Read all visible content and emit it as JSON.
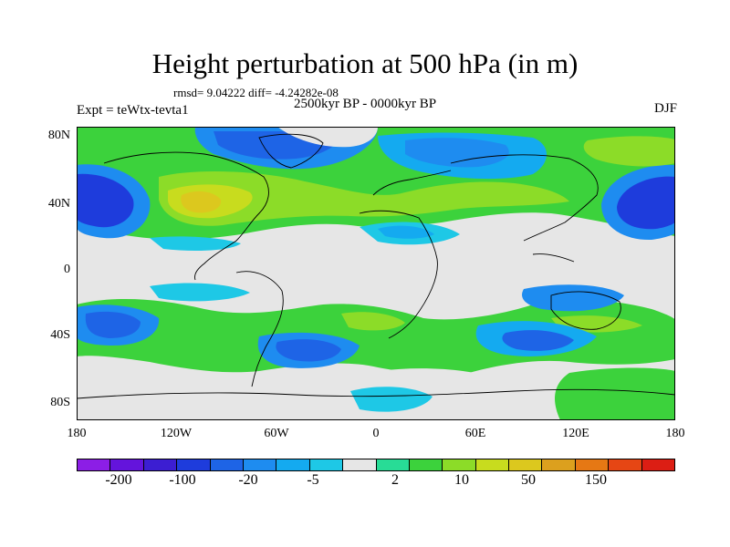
{
  "title": "Height perturbation at 500 hPa (in m)",
  "stats_line": "rmsd= 9.04222 diff= -4.24282e-08",
  "period": "2500kyr BP - 0000kyr BP",
  "experiment": "Expt = teWtx-tevta1",
  "season": "DJF",
  "lat_labels": [
    "80N",
    "40N",
    "0",
    "40S",
    "80S"
  ],
  "lon_labels": [
    "180",
    "120W",
    "60W",
    "0",
    "60E",
    "120E",
    "180"
  ],
  "colorbar": {
    "colors": [
      "#8c1ee6",
      "#6414dc",
      "#3c1ed2",
      "#1e3cdc",
      "#1e64e6",
      "#1e8cf0",
      "#14aaf0",
      "#1ec8e6",
      "#e6e6e6",
      "#28dc96",
      "#3cd23c",
      "#8cdc28",
      "#c8dc1e",
      "#dcc81e",
      "#dca01e",
      "#e67814",
      "#e64614",
      "#dc1e14"
    ],
    "tick_labels": [
      "-200",
      "-100",
      "-20",
      "-5",
      "2",
      "10",
      "50",
      "150"
    ]
  },
  "palette": {
    "deep_neg": "#1e3cdc",
    "mid_neg": "#1e64e6",
    "neg": "#1e8cf0",
    "light_neg": "#14aaf0",
    "pale_neg": "#1ec8e6",
    "neutral": "#e6e6e6",
    "pale_pos": "#28dc96",
    "pos": "#3cd23c",
    "yellow_green": "#8cdc28",
    "yellow": "#c8dc1e",
    "orange": "#dcc81e",
    "coast": "#000000"
  }
}
